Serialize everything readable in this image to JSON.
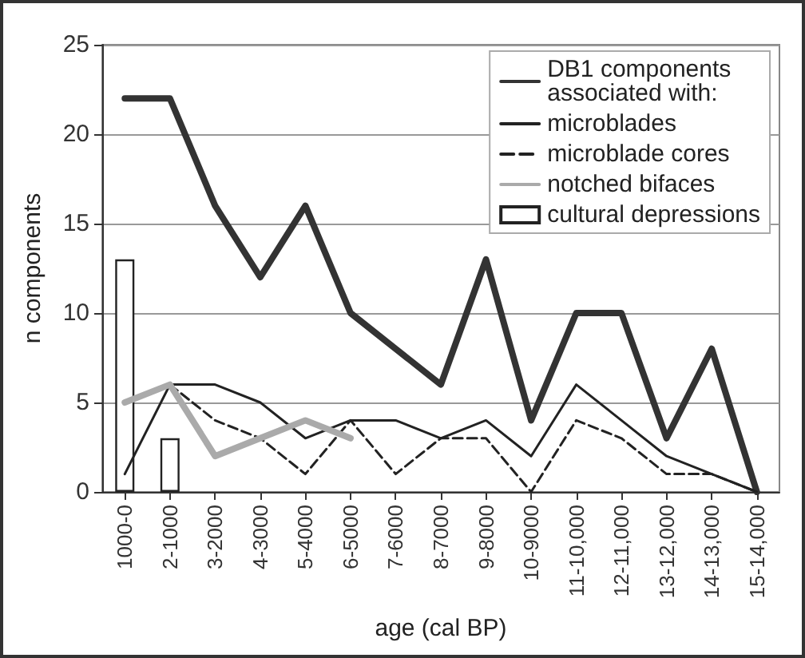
{
  "chart_data": {
    "type": "line",
    "categories": [
      "1000-0",
      "2-1000",
      "3-2000",
      "4-3000",
      "5-4000",
      "6-5000",
      "7-6000",
      "8-7000",
      "9-8000",
      "10-9000",
      "11-10,000",
      "12-11,000",
      "13-12,000",
      "14-13,000",
      "15-14,000"
    ],
    "series": [
      {
        "name": "DB1 components\nassociated with:",
        "color": "#333333",
        "line_style": "solid",
        "values": [
          22,
          22,
          16,
          12,
          16,
          10,
          8,
          6,
          13,
          4,
          10,
          10,
          3,
          8,
          0
        ]
      },
      {
        "name": "microblades",
        "color": "#222222",
        "line_style": "solid",
        "values": [
          1,
          6,
          6,
          5,
          3,
          4,
          4,
          3,
          4,
          2,
          6,
          4,
          2,
          1,
          0
        ]
      },
      {
        "name": "microblade cores",
        "color": "#222222",
        "line_style": "dashed",
        "values": [
          null,
          6,
          4,
          3,
          1,
          4,
          1,
          3,
          3,
          0,
          4,
          3,
          1,
          1,
          0
        ]
      },
      {
        "name": "notched bifaces",
        "color": "#aaaaaa",
        "line_style": "solid",
        "values": [
          5,
          6,
          2,
          3,
          4,
          3,
          null,
          null,
          null,
          null,
          null,
          null,
          null,
          null,
          null
        ]
      },
      {
        "name": "cultural depressions",
        "type": "bar",
        "color": "#ffffff",
        "values": [
          13,
          3,
          null,
          null,
          null,
          null,
          null,
          null,
          null,
          null,
          null,
          null,
          null,
          null,
          null
        ]
      }
    ],
    "xlabel": "age (cal BP)",
    "ylabel": "n components",
    "ylim": [
      0,
      25
    ],
    "yticks": [
      0,
      5,
      10,
      15,
      20,
      25
    ],
    "grid": "y",
    "legend": "top right",
    "marker": "none"
  }
}
